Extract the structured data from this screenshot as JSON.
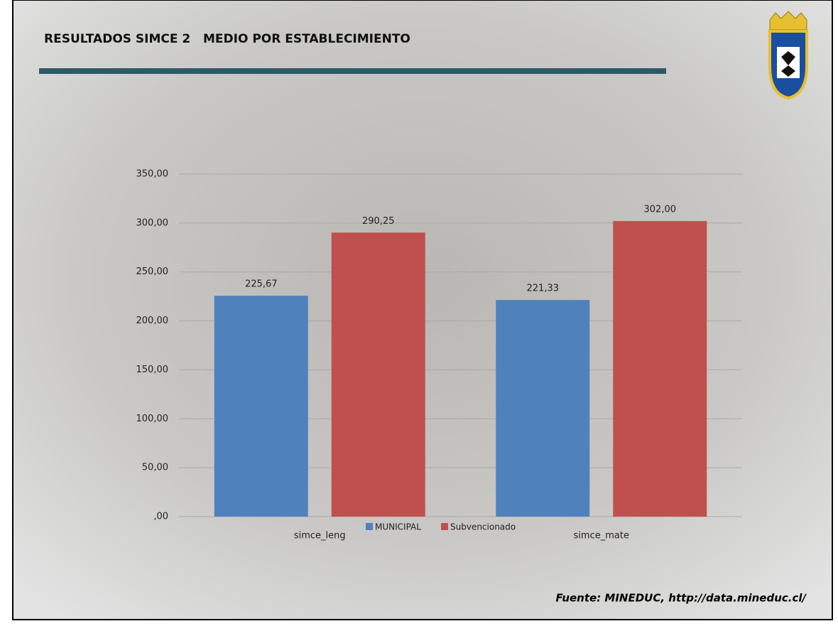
{
  "chart_data": {
    "type": "bar",
    "title": "RESULTADOS SIMCE 2   MEDIO POR ESTABLECIMIENTO",
    "source": "Fuente: MINEDUC, http://data.mineduc.cl/",
    "categories": [
      "simce_leng",
      "simce_mate"
    ],
    "series": [
      {
        "name": "MUNICIPAL",
        "color": "#4f81bd",
        "values": [
          225.67,
          221.33
        ],
        "value_labels": [
          "225,67",
          "221,33"
        ]
      },
      {
        "name": "Subvencionado",
        "color": "#c0504d",
        "values": [
          290.25,
          302.0
        ],
        "value_labels": [
          "290,25",
          "302,00"
        ]
      }
    ],
    "ylim": [
      0,
      350
    ],
    "yticks": [
      {
        "value": 0,
        "label": ",00"
      },
      {
        "value": 50,
        "label": "50,00"
      },
      {
        "value": 100,
        "label": "100,00"
      },
      {
        "value": 150,
        "label": "150,00"
      },
      {
        "value": 200,
        "label": "200,00"
      },
      {
        "value": 250,
        "label": "250,00"
      },
      {
        "value": 300,
        "label": "300,00"
      },
      {
        "value": 350,
        "label": "350,00"
      }
    ],
    "grid": true,
    "legend": "bottom"
  }
}
